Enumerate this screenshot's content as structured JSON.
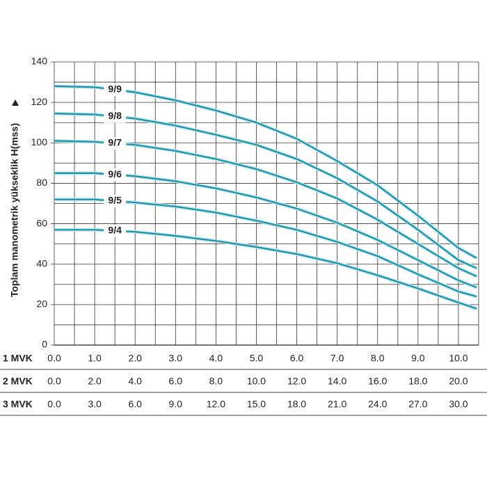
{
  "chart_data": {
    "type": "line",
    "ylabel": "Toplam manometrik yükseklik H(mss)",
    "x": [
      0,
      1,
      2,
      3,
      4,
      5,
      6,
      7,
      8,
      9,
      10,
      10.45
    ],
    "xlim": [
      0,
      10.5
    ],
    "xminor": [
      0.5,
      1.5,
      2.5,
      3.5,
      4.5,
      5.5,
      6.5,
      7.5,
      8.5,
      9.5,
      10.5
    ],
    "ylim": [
      0,
      140
    ],
    "yticks": [
      0,
      20,
      40,
      60,
      80,
      100,
      120,
      140
    ],
    "yminor": [
      10,
      30,
      50,
      70,
      90,
      110,
      130
    ],
    "grid": true,
    "color": "#1a93a8",
    "x_axes": [
      {
        "label": "1 MVK",
        "xlim": [
          0,
          10.5
        ],
        "xticks": [
          {
            "value": 0,
            "label": "0.0"
          },
          {
            "value": 1,
            "label": "1.0"
          },
          {
            "value": 2,
            "label": "2.0"
          },
          {
            "value": 3,
            "label": "3.0"
          },
          {
            "value": 4,
            "label": "4.0"
          },
          {
            "value": 5,
            "label": "5.0"
          },
          {
            "value": 6,
            "label": "6.0"
          },
          {
            "value": 7,
            "label": "7.0"
          },
          {
            "value": 8,
            "label": "8.0"
          },
          {
            "value": 9,
            "label": "9.0"
          },
          {
            "value": 10,
            "label": "10.0"
          }
        ]
      },
      {
        "label": "2 MVK",
        "xlim": [
          0,
          21
        ],
        "xticks": [
          {
            "value": 0,
            "label": "0.0"
          },
          {
            "value": 2,
            "label": "2.0"
          },
          {
            "value": 4,
            "label": "4.0"
          },
          {
            "value": 6,
            "label": "6.0"
          },
          {
            "value": 8,
            "label": "8.0"
          },
          {
            "value": 10,
            "label": "10.0"
          },
          {
            "value": 12,
            "label": "12.0"
          },
          {
            "value": 14,
            "label": "14.0"
          },
          {
            "value": 16,
            "label": "16.0"
          },
          {
            "value": 18,
            "label": "18.0"
          },
          {
            "value": 20,
            "label": "20.0"
          }
        ]
      },
      {
        "label": "3 MVK",
        "xlim": [
          0,
          31.5
        ],
        "xticks": [
          {
            "value": 0,
            "label": "0.0"
          },
          {
            "value": 3,
            "label": "3.0"
          },
          {
            "value": 6,
            "label": "6.0"
          },
          {
            "value": 9,
            "label": "9.0"
          },
          {
            "value": 12,
            "label": "12.0"
          },
          {
            "value": 15,
            "label": "15.0"
          },
          {
            "value": 18,
            "label": "18.0"
          },
          {
            "value": 21,
            "label": "21.0"
          },
          {
            "value": 24,
            "label": "24.0"
          },
          {
            "value": 27,
            "label": "27.0"
          },
          {
            "value": 30,
            "label": "30.0"
          }
        ]
      }
    ],
    "series": [
      {
        "name": "9/9",
        "values": [
          128,
          127.5,
          125,
          121,
          116,
          110,
          102,
          91,
          79,
          64,
          48,
          43
        ]
      },
      {
        "name": "9/8",
        "values": [
          114.5,
          114,
          112,
          108.5,
          104,
          99,
          92,
          82.5,
          71,
          57,
          42,
          38
        ]
      },
      {
        "name": "9/7",
        "values": [
          101,
          100.5,
          99,
          96,
          92,
          87,
          80.5,
          72.5,
          62,
          50,
          38,
          34
        ]
      },
      {
        "name": "9/6",
        "values": [
          85,
          85,
          83.5,
          81,
          77.5,
          73,
          67.5,
          60.5,
          52,
          42,
          32,
          28.5
        ]
      },
      {
        "name": "9/5",
        "values": [
          72,
          72,
          70.5,
          68.5,
          65.5,
          61.5,
          57,
          51,
          44,
          35,
          26.5,
          24
        ]
      },
      {
        "name": "9/4",
        "values": [
          57,
          57,
          56,
          54,
          51.5,
          48.5,
          45,
          40.5,
          34.5,
          28,
          21,
          18
        ]
      }
    ]
  }
}
